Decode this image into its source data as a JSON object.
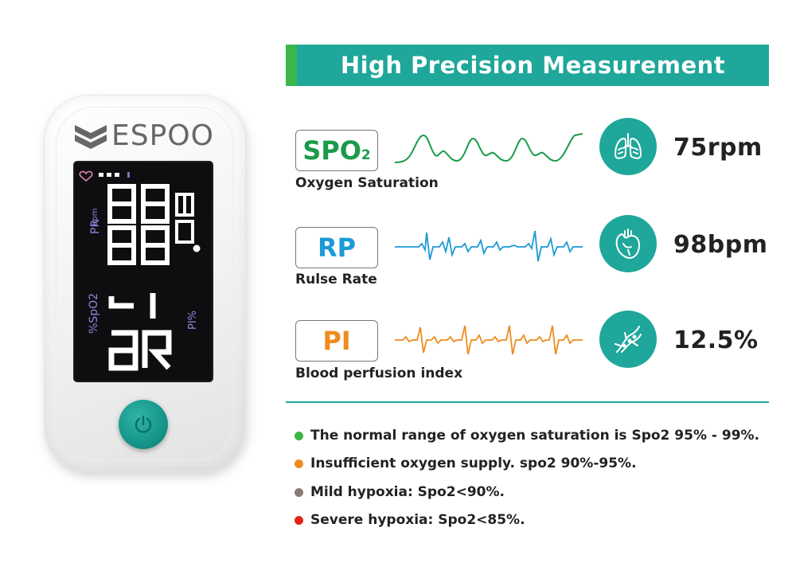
{
  "device": {
    "brand": "ESPOO",
    "screen": {
      "pr_label": "PR",
      "bpm_label": "bpm",
      "spo2_label": "%SpO2",
      "pi_label": "PI%"
    }
  },
  "header": {
    "title": "High Precision Measurement"
  },
  "rows": [
    {
      "badge": "SPO",
      "badge_sub": "2",
      "badge_color": "#1a9a4a",
      "caption": "Oxygen Saturation",
      "wave_color": "#1a9a4a",
      "icon": "lungs-icon",
      "value": "75rpm"
    },
    {
      "badge": "RP",
      "badge_color": "#1b9ad6",
      "caption": "Rulse Rate",
      "wave_color": "#1b9ad6",
      "icon": "heart-icon",
      "value": "98bpm"
    },
    {
      "badge": "PI",
      "badge_color": "#ee8c1f",
      "caption": "Blood perfusion index",
      "wave_color": "#ee8c1f",
      "icon": "blood-vessel-icon",
      "value": "12.5%"
    }
  ],
  "notes": [
    {
      "text": "The normal range of oxygen saturation is Spo2 95% - 99%.",
      "color": "#3fb548"
    },
    {
      "text": "Insufficient oxygen supply. spo2 90%-95%.",
      "color": "#f08a24"
    },
    {
      "text": "Mild hypoxia: Spo2<90%.",
      "color": "#8a7a76"
    },
    {
      "text": "Severe hypoxia: Spo2<85%.",
      "color": "#e2231a"
    }
  ],
  "colors": {
    "teal": "#1ea79a",
    "green": "#3bb74a"
  }
}
